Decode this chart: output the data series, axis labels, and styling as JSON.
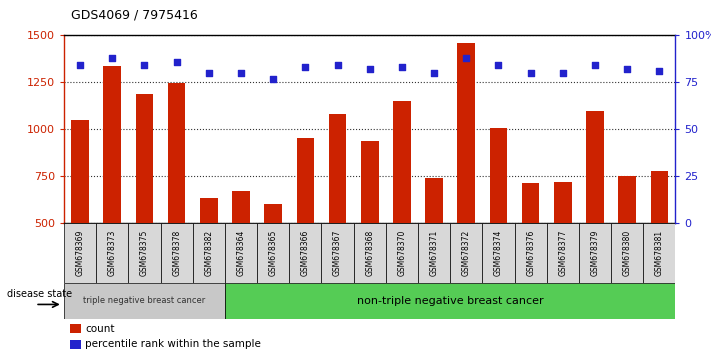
{
  "title": "GDS4069 / 7975416",
  "samples": [
    "GSM678369",
    "GSM678373",
    "GSM678375",
    "GSM678378",
    "GSM678382",
    "GSM678364",
    "GSM678365",
    "GSM678366",
    "GSM678367",
    "GSM678368",
    "GSM678370",
    "GSM678371",
    "GSM678372",
    "GSM678374",
    "GSM678376",
    "GSM678377",
    "GSM678379",
    "GSM678380",
    "GSM678381"
  ],
  "counts": [
    1050,
    1335,
    1190,
    1245,
    635,
    670,
    600,
    955,
    1080,
    935,
    1150,
    740,
    1460,
    1005,
    715,
    720,
    1095,
    750,
    775
  ],
  "percentiles": [
    84,
    88,
    84,
    86,
    80,
    80,
    77,
    83,
    84,
    82,
    83,
    80,
    88,
    84,
    80,
    80,
    84,
    82,
    81
  ],
  "group1_count": 5,
  "group1_label": "triple negative breast cancer",
  "group2_label": "non-triple negative breast cancer",
  "ylim_left": [
    500,
    1500
  ],
  "ylim_right": [
    0,
    100
  ],
  "yticks_left": [
    500,
    750,
    1000,
    1250,
    1500
  ],
  "yticks_right": [
    0,
    25,
    50,
    75,
    100
  ],
  "bar_color": "#cc2200",
  "dot_color": "#2222cc",
  "plot_bg": "#ffffff",
  "cell_bg": "#d8d8d8",
  "group1_bg": "#c8c8c8",
  "group2_bg": "#55cc55",
  "legend_count_label": "count",
  "legend_pct_label": "percentile rank within the sample",
  "grid_style": "dotted",
  "grid_color": "#333333",
  "disease_state_label": "disease state"
}
